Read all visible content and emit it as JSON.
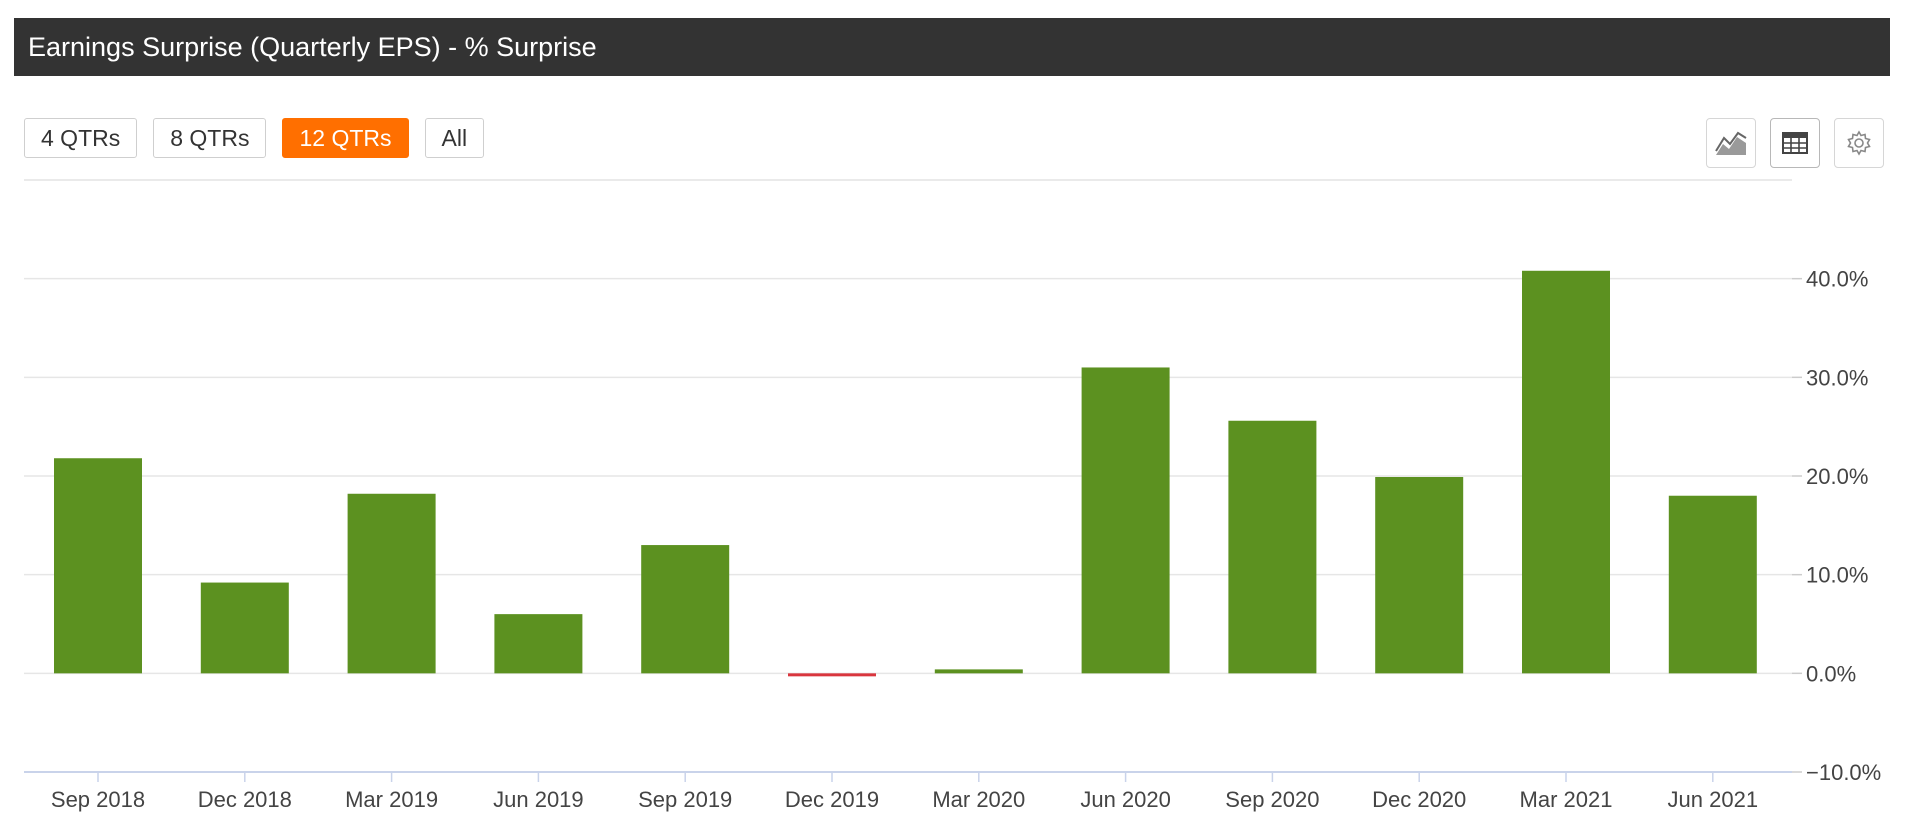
{
  "header": {
    "title": "Earnings Surprise (Quarterly EPS) - % Surprise"
  },
  "range_buttons": [
    {
      "label": "4 QTRs",
      "active": false
    },
    {
      "label": "8 QTRs",
      "active": false
    },
    {
      "label": "12 QTRs",
      "active": true
    },
    {
      "label": "All",
      "active": false
    }
  ],
  "toolbar": {
    "icons": [
      "area-chart-icon",
      "table-icon",
      "gear-icon"
    ]
  },
  "colors": {
    "positive": "#5c9120",
    "negative": "#d9363e",
    "accent": "#ff6f00",
    "header_bg": "#333333"
  },
  "chart_data": {
    "type": "bar",
    "categories": [
      "Sep 2018",
      "Dec 2018",
      "Mar 2019",
      "Jun 2019",
      "Sep 2019",
      "Dec 2019",
      "Mar 2020",
      "Jun 2020",
      "Sep 2020",
      "Dec 2020",
      "Mar 2021",
      "Jun 2021"
    ],
    "values": [
      21.8,
      9.2,
      18.2,
      6.0,
      13.0,
      -0.3,
      0.4,
      31.0,
      25.6,
      19.9,
      40.8,
      18.0
    ],
    "yticks": [
      "40.0%",
      "30.0%",
      "20.0%",
      "10.0%",
      "0.0%",
      "−10.0%"
    ],
    "ytick_values": [
      40,
      30,
      20,
      10,
      0,
      -10
    ],
    "ylim": [
      -10,
      50
    ],
    "title": "",
    "xlabel": "",
    "ylabel": "",
    "y_axis_side": "right",
    "grid": true
  }
}
